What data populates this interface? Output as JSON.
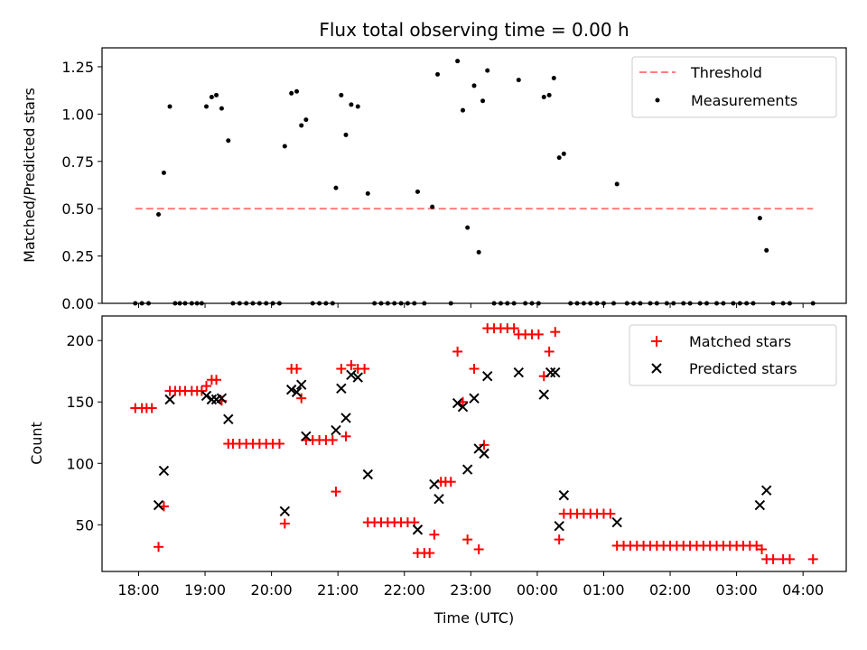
{
  "colors": {
    "threshold": "#ff7f7f",
    "measurements": "#000000",
    "matched": "#ff0000",
    "predicted": "#000000"
  },
  "chart_data": [
    {
      "type": "scatter",
      "title": "Flux total observing time = 0.00 h",
      "xlabel": "",
      "ylabel": "Matched/Predicted stars",
      "x_format": "hours since 18:00 UTC",
      "xlim": [
        -0.55,
        10.65
      ],
      "ylim": [
        0,
        1.35
      ],
      "yticks": [
        0.0,
        0.25,
        0.5,
        0.75,
        1.0,
        1.25
      ],
      "ytick_labels": [
        "0.00",
        "0.25",
        "0.50",
        "0.75",
        "1.00",
        "1.25"
      ],
      "legend": {
        "position": "top-right",
        "entries": [
          "Threshold",
          "Measurements"
        ]
      },
      "series": [
        {
          "name": "Threshold",
          "kind": "dashed-line",
          "x": [
            -0.05,
            10.15
          ],
          "y": [
            0.5,
            0.5
          ]
        },
        {
          "name": "Measurements",
          "kind": "dots",
          "points": [
            [
              -0.05,
              0
            ],
            [
              0.05,
              0
            ],
            [
              0.15,
              0
            ],
            [
              0.3,
              0.47
            ],
            [
              0.38,
              0.69
            ],
            [
              0.47,
              1.04
            ],
            [
              0.55,
              0
            ],
            [
              0.62,
              0
            ],
            [
              0.7,
              0
            ],
            [
              0.8,
              0
            ],
            [
              0.88,
              0
            ],
            [
              0.95,
              0
            ],
            [
              1.02,
              1.04
            ],
            [
              1.1,
              1.09
            ],
            [
              1.17,
              1.1
            ],
            [
              1.25,
              1.03
            ],
            [
              1.35,
              0.86
            ],
            [
              1.42,
              0
            ],
            [
              1.52,
              0
            ],
            [
              1.62,
              0
            ],
            [
              1.72,
              0
            ],
            [
              1.82,
              0
            ],
            [
              1.92,
              0
            ],
            [
              2.02,
              0
            ],
            [
              2.12,
              0
            ],
            [
              2.2,
              0.83
            ],
            [
              2.3,
              1.11
            ],
            [
              2.38,
              1.12
            ],
            [
              2.45,
              0.94
            ],
            [
              2.52,
              0.97
            ],
            [
              2.62,
              0
            ],
            [
              2.72,
              0
            ],
            [
              2.82,
              0
            ],
            [
              2.92,
              0
            ],
            [
              2.97,
              0.61
            ],
            [
              3.05,
              1.1
            ],
            [
              3.12,
              0.89
            ],
            [
              3.2,
              1.05
            ],
            [
              3.3,
              1.04
            ],
            [
              3.45,
              0.58
            ],
            [
              3.55,
              0
            ],
            [
              3.65,
              0
            ],
            [
              3.75,
              0
            ],
            [
              3.85,
              0
            ],
            [
              3.95,
              0
            ],
            [
              4.05,
              0
            ],
            [
              4.15,
              0
            ],
            [
              4.2,
              0.59
            ],
            [
              4.3,
              0
            ],
            [
              4.42,
              0.51
            ],
            [
              4.5,
              1.21
            ],
            [
              4.7,
              0
            ],
            [
              4.8,
              1.28
            ],
            [
              4.88,
              1.02
            ],
            [
              4.95,
              0.4
            ],
            [
              5.05,
              1.15
            ],
            [
              5.12,
              0.27
            ],
            [
              5.18,
              1.07
            ],
            [
              5.25,
              1.23
            ],
            [
              5.35,
              0
            ],
            [
              5.45,
              0
            ],
            [
              5.55,
              0
            ],
            [
              5.65,
              0
            ],
            [
              5.72,
              1.18
            ],
            [
              5.82,
              0
            ],
            [
              5.92,
              0
            ],
            [
              6.02,
              0
            ],
            [
              6.1,
              1.09
            ],
            [
              6.18,
              1.1
            ],
            [
              6.25,
              1.19
            ],
            [
              6.33,
              0.77
            ],
            [
              6.4,
              0.79
            ],
            [
              6.5,
              0
            ],
            [
              6.6,
              0
            ],
            [
              6.7,
              0
            ],
            [
              6.8,
              0
            ],
            [
              6.9,
              0
            ],
            [
              7.0,
              0
            ],
            [
              7.15,
              0
            ],
            [
              7.2,
              0.63
            ],
            [
              7.35,
              0
            ],
            [
              7.45,
              0
            ],
            [
              7.55,
              0
            ],
            [
              7.7,
              0
            ],
            [
              7.8,
              0
            ],
            [
              7.95,
              0
            ],
            [
              8.05,
              0
            ],
            [
              8.2,
              0
            ],
            [
              8.3,
              0
            ],
            [
              8.45,
              0
            ],
            [
              8.55,
              0
            ],
            [
              8.7,
              0
            ],
            [
              8.8,
              0
            ],
            [
              8.95,
              0
            ],
            [
              9.05,
              0
            ],
            [
              9.15,
              0
            ],
            [
              9.25,
              0
            ],
            [
              9.35,
              0.45
            ],
            [
              9.45,
              0.28
            ],
            [
              9.55,
              0
            ],
            [
              9.7,
              0
            ],
            [
              9.8,
              0
            ],
            [
              10.15,
              0
            ]
          ]
        }
      ]
    },
    {
      "type": "scatter",
      "title": "",
      "xlabel": "Time (UTC)",
      "ylabel": "Count",
      "x_format": "hours since 18:00 UTC",
      "xlim": [
        -0.55,
        10.65
      ],
      "ylim": [
        12,
        220
      ],
      "yticks": [
        50,
        100,
        150,
        200
      ],
      "ytick_labels": [
        "50",
        "100",
        "150",
        "200"
      ],
      "xticks": [
        0,
        1,
        2,
        3,
        4,
        5,
        6,
        7,
        8,
        9,
        10
      ],
      "xtick_labels": [
        "18:00",
        "19:00",
        "20:00",
        "21:00",
        "22:00",
        "23:00",
        "00:00",
        "01:00",
        "02:00",
        "03:00",
        "04:00"
      ],
      "legend": {
        "position": "top-right",
        "entries": [
          "Matched stars",
          "Predicted stars"
        ]
      },
      "series": [
        {
          "name": "Matched stars",
          "kind": "plus",
          "points": [
            [
              -0.05,
              145
            ],
            [
              0.05,
              145
            ],
            [
              0.12,
              145
            ],
            [
              0.2,
              145
            ],
            [
              0.3,
              32
            ],
            [
              0.38,
              65
            ],
            [
              0.47,
              159
            ],
            [
              0.55,
              159
            ],
            [
              0.62,
              159
            ],
            [
              0.7,
              159
            ],
            [
              0.8,
              159
            ],
            [
              0.88,
              159
            ],
            [
              0.95,
              159
            ],
            [
              1.02,
              163
            ],
            [
              1.1,
              168
            ],
            [
              1.17,
              168
            ],
            [
              1.25,
              151
            ],
            [
              1.35,
              116
            ],
            [
              1.42,
              116
            ],
            [
              1.52,
              116
            ],
            [
              1.62,
              116
            ],
            [
              1.72,
              116
            ],
            [
              1.82,
              116
            ],
            [
              1.92,
              116
            ],
            [
              2.02,
              116
            ],
            [
              2.12,
              116
            ],
            [
              2.2,
              51
            ],
            [
              2.3,
              177
            ],
            [
              2.38,
              177
            ],
            [
              2.45,
              153
            ],
            [
              2.52,
              119
            ],
            [
              2.62,
              119
            ],
            [
              2.72,
              119
            ],
            [
              2.82,
              119
            ],
            [
              2.92,
              119
            ],
            [
              2.97,
              77
            ],
            [
              3.05,
              177
            ],
            [
              3.12,
              122
            ],
            [
              3.2,
              180
            ],
            [
              3.3,
              177
            ],
            [
              3.4,
              177
            ],
            [
              3.45,
              52
            ],
            [
              3.55,
              52
            ],
            [
              3.65,
              52
            ],
            [
              3.75,
              52
            ],
            [
              3.85,
              52
            ],
            [
              3.95,
              52
            ],
            [
              4.05,
              52
            ],
            [
              4.15,
              52
            ],
            [
              4.2,
              27
            ],
            [
              4.3,
              27
            ],
            [
              4.38,
              27
            ],
            [
              4.45,
              42
            ],
            [
              4.55,
              85
            ],
            [
              4.62,
              85
            ],
            [
              4.7,
              85
            ],
            [
              4.8,
              191
            ],
            [
              4.88,
              150
            ],
            [
              4.95,
              38
            ],
            [
              5.05,
              177
            ],
            [
              5.12,
              30
            ],
            [
              5.2,
              115
            ],
            [
              5.25,
              210
            ],
            [
              5.35,
              210
            ],
            [
              5.45,
              210
            ],
            [
              5.55,
              210
            ],
            [
              5.65,
              210
            ],
            [
              5.72,
              205
            ],
            [
              5.82,
              205
            ],
            [
              5.92,
              205
            ],
            [
              6.02,
              205
            ],
            [
              6.1,
              171
            ],
            [
              6.18,
              191
            ],
            [
              6.27,
              207
            ],
            [
              6.33,
              38
            ],
            [
              6.4,
              59
            ],
            [
              6.5,
              59
            ],
            [
              6.6,
              59
            ],
            [
              6.7,
              59
            ],
            [
              6.8,
              59
            ],
            [
              6.9,
              59
            ],
            [
              7.0,
              59
            ],
            [
              7.1,
              59
            ],
            [
              7.2,
              33
            ],
            [
              7.3,
              33
            ],
            [
              7.4,
              33
            ],
            [
              7.5,
              33
            ],
            [
              7.6,
              33
            ],
            [
              7.7,
              33
            ],
            [
              7.8,
              33
            ],
            [
              7.9,
              33
            ],
            [
              8.0,
              33
            ],
            [
              8.1,
              33
            ],
            [
              8.2,
              33
            ],
            [
              8.3,
              33
            ],
            [
              8.4,
              33
            ],
            [
              8.5,
              33
            ],
            [
              8.6,
              33
            ],
            [
              8.7,
              33
            ],
            [
              8.8,
              33
            ],
            [
              8.9,
              33
            ],
            [
              9.0,
              33
            ],
            [
              9.1,
              33
            ],
            [
              9.2,
              33
            ],
            [
              9.3,
              33
            ],
            [
              9.38,
              30
            ],
            [
              9.45,
              22
            ],
            [
              9.55,
              22
            ],
            [
              9.7,
              22
            ],
            [
              9.8,
              22
            ],
            [
              10.15,
              22
            ]
          ]
        },
        {
          "name": "Predicted stars",
          "kind": "x",
          "points": [
            [
              0.3,
              66
            ],
            [
              0.38,
              94
            ],
            [
              0.47,
              152
            ],
            [
              1.02,
              155
            ],
            [
              1.1,
              152
            ],
            [
              1.17,
              152
            ],
            [
              1.25,
              153
            ],
            [
              1.35,
              136
            ],
            [
              2.2,
              61
            ],
            [
              2.3,
              160
            ],
            [
              2.38,
              158
            ],
            [
              2.45,
              164
            ],
            [
              2.52,
              122
            ],
            [
              2.97,
              127
            ],
            [
              3.05,
              161
            ],
            [
              3.12,
              137
            ],
            [
              3.2,
              172
            ],
            [
              3.3,
              170
            ],
            [
              3.45,
              91
            ],
            [
              4.2,
              46
            ],
            [
              4.45,
              83
            ],
            [
              4.52,
              71
            ],
            [
              4.8,
              149
            ],
            [
              4.88,
              146
            ],
            [
              4.95,
              95
            ],
            [
              5.05,
              153
            ],
            [
              5.12,
              112
            ],
            [
              5.2,
              108
            ],
            [
              5.25,
              171
            ],
            [
              5.72,
              174
            ],
            [
              6.1,
              156
            ],
            [
              6.2,
              174
            ],
            [
              6.27,
              174
            ],
            [
              6.33,
              49
            ],
            [
              6.4,
              74
            ],
            [
              7.2,
              52
            ],
            [
              9.35,
              66
            ],
            [
              9.45,
              78
            ]
          ]
        }
      ]
    }
  ]
}
